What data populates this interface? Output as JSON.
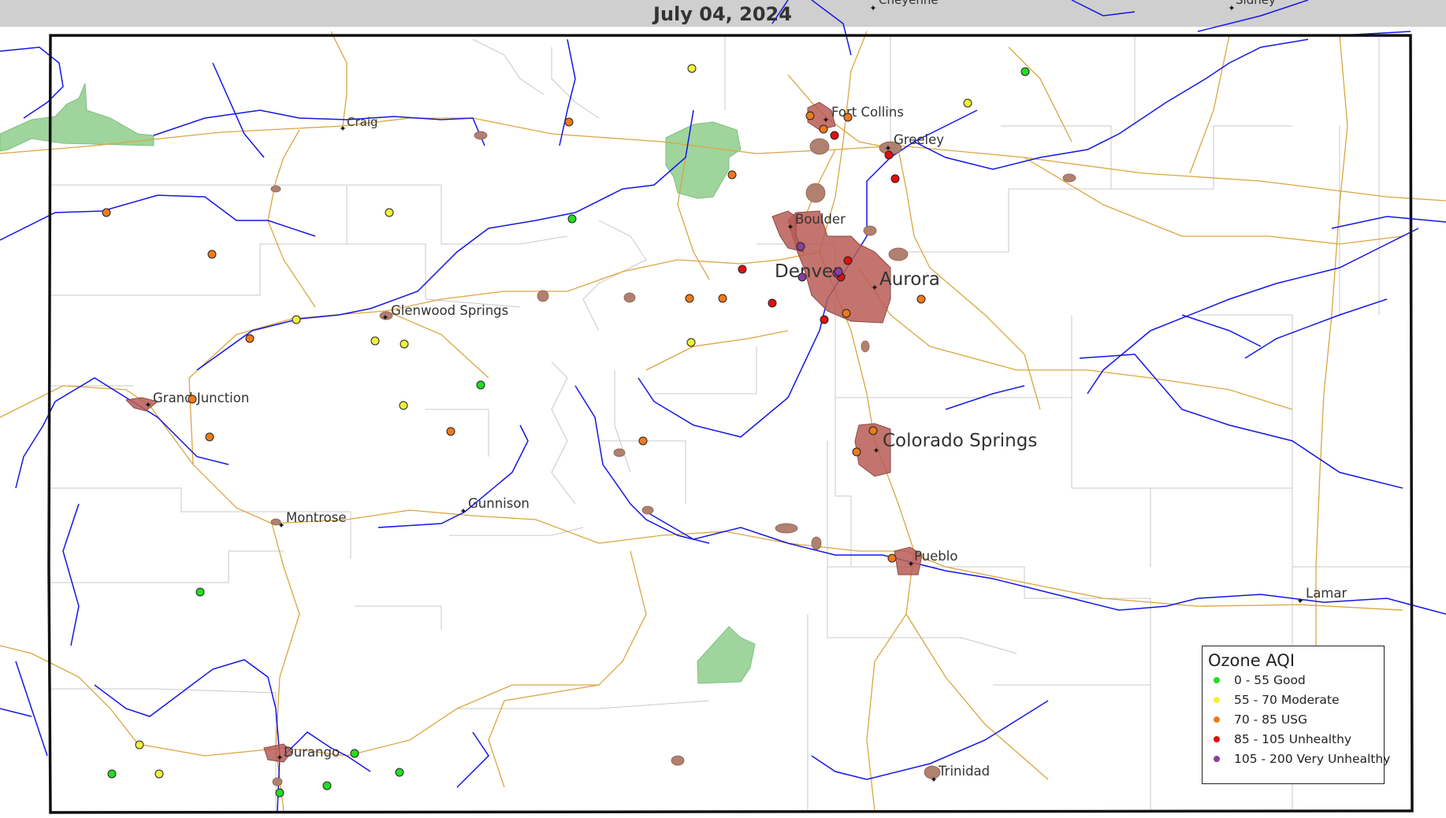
{
  "map": {
    "title": "July 04, 2024",
    "colors": {
      "state_border": "#111111",
      "county_line": "#c8c8c8",
      "river": "#1515e6",
      "highway": "#d9a640",
      "urban_area": "#b85c55",
      "small_town": "#b08070",
      "national_park": "#9fd49c",
      "outside_band": "#cfcfcf"
    },
    "cities": [
      {
        "name": "Cheyenne",
        "size": "small"
      },
      {
        "name": "Sidney",
        "size": "small"
      },
      {
        "name": "Craig",
        "size": "small"
      },
      {
        "name": "Fort Collins",
        "size": "medium"
      },
      {
        "name": "Greeley",
        "size": "medium"
      },
      {
        "name": "Boulder",
        "size": "medium"
      },
      {
        "name": "Denver",
        "size": "large"
      },
      {
        "name": "Aurora",
        "size": "large"
      },
      {
        "name": "Glenwood Springs",
        "size": "medium"
      },
      {
        "name": "Grand Junction",
        "size": "medium"
      },
      {
        "name": "Colorado Springs",
        "size": "large"
      },
      {
        "name": "Montrose",
        "size": "medium"
      },
      {
        "name": "Gunnison",
        "size": "medium"
      },
      {
        "name": "Pueblo",
        "size": "medium"
      },
      {
        "name": "Lamar",
        "size": "medium"
      },
      {
        "name": "Durango",
        "size": "medium"
      },
      {
        "name": "Trinidad",
        "size": "medium"
      }
    ],
    "monitors_by_category": {
      "good": 9,
      "moderate": 11,
      "usg": 20,
      "unhealthy": 8,
      "very_unhealthy": 4
    }
  },
  "legend": {
    "title": "Ozone AQI",
    "items": [
      {
        "label": "0 - 55 Good",
        "color": "#22dd22"
      },
      {
        "label": "55 - 70 Moderate",
        "color": "#f2f238"
      },
      {
        "label": "70 - 85 USG",
        "color": "#f07a1a"
      },
      {
        "label": "85 - 105 Unhealthy",
        "color": "#e01010"
      },
      {
        "label": "105 - 200 Very Unhealthy",
        "color": "#8a3fa0"
      }
    ]
  }
}
